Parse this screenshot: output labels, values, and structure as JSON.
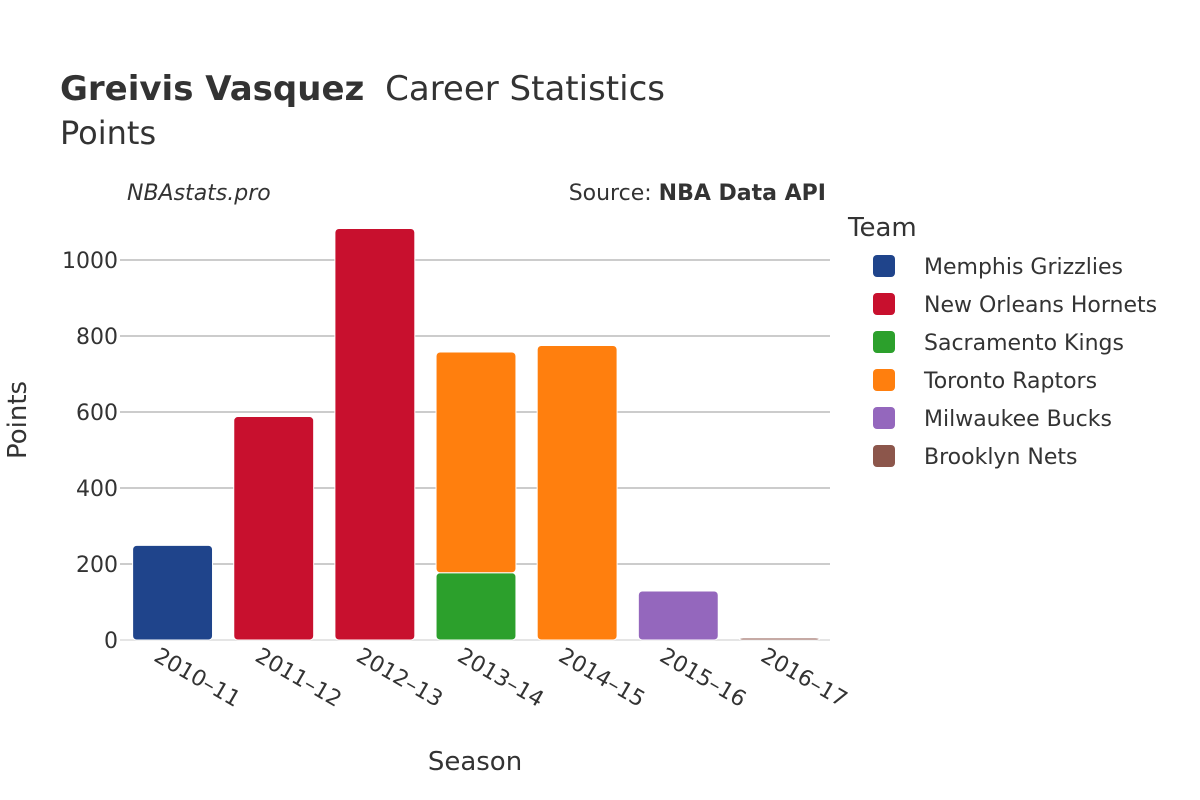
{
  "header": {
    "title_bold": "Greivis Vasquez",
    "title_rest": "Career Statistics",
    "subtitle": "Points",
    "watermark": "NBAstats.pro",
    "source_prefix": "Source: ",
    "source_name": "NBA Data API"
  },
  "legend": {
    "title": "Team",
    "items": [
      {
        "label": "Memphis Grizzlies",
        "color": "#1f448b"
      },
      {
        "label": "New Orleans Hornets",
        "color": "#c8102e"
      },
      {
        "label": "Sacramento Kings",
        "color": "#2ca02c"
      },
      {
        "label": "Toronto Raptors",
        "color": "#ff7f0e"
      },
      {
        "label": "Milwaukee Bucks",
        "color": "#9467bd"
      },
      {
        "label": "Brooklyn Nets",
        "color": "#8c564b"
      }
    ]
  },
  "chart_data": {
    "type": "bar",
    "stacked": true,
    "xlabel": "Season",
    "ylabel": "Points",
    "ylim": [
      0,
      1100
    ],
    "yticks": [
      0,
      200,
      400,
      600,
      800,
      1000
    ],
    "grid": true,
    "legend_position": "right",
    "categories": [
      "2010–11",
      "2011–12",
      "2012–13",
      "2013–14",
      "2014–15",
      "2015–16",
      "2016–17"
    ],
    "series": [
      {
        "name": "Memphis Grizzlies",
        "color": "#1f448b",
        "values": [
          249,
          0,
          0,
          0,
          0,
          0,
          0
        ]
      },
      {
        "name": "New Orleans Hornets",
        "color": "#c8102e",
        "values": [
          0,
          588,
          1083,
          0,
          0,
          0,
          0
        ]
      },
      {
        "name": "Sacramento Kings",
        "color": "#2ca02c",
        "values": [
          0,
          0,
          0,
          177,
          0,
          0,
          0
        ]
      },
      {
        "name": "Toronto Raptors",
        "color": "#ff7f0e",
        "values": [
          0,
          0,
          0,
          581,
          775,
          0,
          0
        ]
      },
      {
        "name": "Milwaukee Bucks",
        "color": "#9467bd",
        "values": [
          0,
          0,
          0,
          0,
          0,
          129,
          0
        ]
      },
      {
        "name": "Brooklyn Nets",
        "color": "#8c564b",
        "values": [
          0,
          0,
          0,
          0,
          0,
          0,
          5
        ]
      }
    ]
  }
}
